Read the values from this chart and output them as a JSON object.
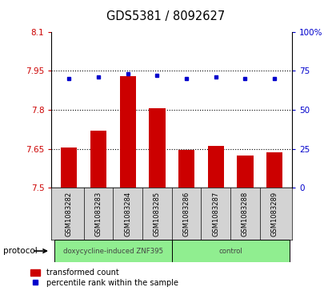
{
  "title": "GDS5381 / 8092627",
  "categories": [
    "GSM1083282",
    "GSM1083283",
    "GSM1083284",
    "GSM1083285",
    "GSM1083286",
    "GSM1083287",
    "GSM1083288",
    "GSM1083289"
  ],
  "bar_values": [
    7.655,
    7.72,
    7.93,
    7.805,
    7.645,
    7.66,
    7.625,
    7.635
  ],
  "bar_base": 7.5,
  "blue_dot_values": [
    70,
    71,
    73,
    72,
    70,
    71,
    70,
    70
  ],
  "bar_color": "#cc0000",
  "dot_color": "#0000cc",
  "left_ylim": [
    7.5,
    8.1
  ],
  "right_ylim": [
    0,
    100
  ],
  "left_yticks": [
    7.5,
    7.65,
    7.8,
    7.95,
    8.1
  ],
  "left_ytick_labels": [
    "7.5",
    "7.65",
    "7.8",
    "7.95",
    "8.1"
  ],
  "right_yticks": [
    0,
    25,
    50,
    75,
    100
  ],
  "right_ytick_labels": [
    "0",
    "25",
    "50",
    "75",
    "100%"
  ],
  "hlines": [
    7.65,
    7.8,
    7.95
  ],
  "protocol_groups": [
    {
      "label": "doxycycline-induced ZNF395",
      "start": 0,
      "end": 4,
      "color": "#90ee90"
    },
    {
      "label": "control",
      "start": 4,
      "end": 8,
      "color": "#90ee90"
    }
  ],
  "protocol_label": "protocol",
  "legend_items": [
    {
      "color": "#cc0000",
      "label": "transformed count"
    },
    {
      "color": "#0000cc",
      "label": "percentile rank within the sample"
    }
  ],
  "background_color": "#ffffff",
  "tick_label_color_left": "#cc0000",
  "tick_label_color_right": "#0000cc",
  "bar_width": 0.55,
  "figsize": [
    4.15,
    3.63
  ],
  "dpi": 100
}
